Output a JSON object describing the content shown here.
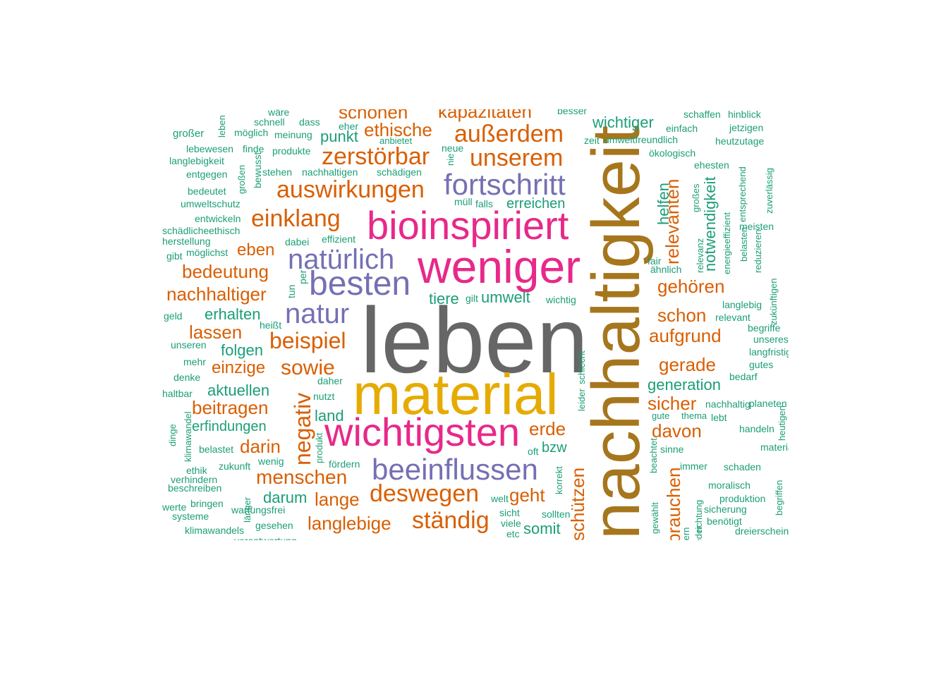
{
  "palette": {
    "gray": "#666666",
    "gold": "#e6ab02",
    "pink": "#e7298a",
    "ochre": "#a6761d",
    "purple": "#7570b3",
    "orange": "#d95f02",
    "teal": "#1b9e77"
  },
  "words": [
    "leben",
    "material",
    "nachhaltigkeit",
    "weniger",
    "bioinspiriert",
    "wichtigsten",
    "besten",
    "beeinflussen",
    "fortschritt",
    "natürlich",
    "natur",
    "zerstörbar",
    "auswirkungen",
    "unserem",
    "außerdem",
    "einklang",
    "deswegen",
    "ständig",
    "beispiel",
    "sowie",
    "negativ",
    "menschen",
    "langlebige",
    "bedeutung",
    "nachhaltiger",
    "ethische",
    "schonen",
    "kapazitäten",
    "relevanten",
    "notwendigkeit",
    "gehören",
    "aufgrund",
    "gerade",
    "sicher",
    "davon",
    "schon",
    "lassen",
    "eben",
    "beitragen",
    "erfindungen",
    "darin",
    "erde",
    "lange",
    "einzige",
    "geht",
    "schützen",
    "brauchen",
    "wichtiger",
    "generation",
    "erreichen",
    "erhalten",
    "folgen",
    "aktuellen",
    "darum",
    "punkt",
    "land",
    "umwelt",
    "tiere",
    "somit",
    "bzw",
    "helfen",
    "großer",
    "leben",
    "möglich",
    "schnell",
    "dass",
    "eher",
    "wäre",
    "meinung",
    "lebewesen",
    "finde",
    "produkte",
    "neue",
    "langlebigkeit",
    "bewusst",
    "stehen",
    "nachhaltigen",
    "schädigen",
    "entgegen",
    "großen",
    "bedeutet",
    "umweltschutz",
    "müll",
    "falls",
    "entwickeln",
    "schädliche",
    "ethisch",
    "herstellung",
    "effizient",
    "dabei",
    "gibt",
    "möglichst",
    "tun",
    "per",
    "geld",
    "heißt",
    "unseren",
    "mehr",
    "denke",
    "haltbar",
    "daher",
    "nutzt",
    "dinge",
    "klimawandel",
    "produkt",
    "belastet",
    "zukunft",
    "wenig",
    "fördern",
    "ethik",
    "verhindern",
    "beschreiben",
    "länger",
    "werte",
    "bringen",
    "wartungsfrei",
    "systeme",
    "klimawandels",
    "gesehen",
    "verantwortung",
    "anbietet",
    "nie",
    "zeit",
    "umweltfreundlich",
    "gilt",
    "wichtig",
    "oft",
    "welt",
    "sicht",
    "sollten",
    "viele",
    "etc",
    "korrekt",
    "leider",
    "schlecht",
    "besser",
    "schaffen",
    "hinblick",
    "einfach",
    "jetzigen",
    "heutzutage",
    "ökologisch",
    "ehesten",
    "entsprechend",
    "zuverlässig",
    "großes",
    "relevanz",
    "meisten",
    "energieeffizient",
    "belasten",
    "reduzieren",
    "fair",
    "ähnlich",
    "zukünftigen",
    "langlebig",
    "relevant",
    "begriffe",
    "unseres",
    "langfristig",
    "gutes",
    "bedarf",
    "nachhaltig",
    "planeten",
    "gute",
    "thema",
    "lebt",
    "handeln",
    "heutigen",
    "beachtet",
    "sinne",
    "materialsystem",
    "gewählt",
    "immer",
    "schaden",
    "richtung",
    "moralisch",
    "begriffen",
    "sicherung",
    "produktion",
    "liefern",
    "benötigt",
    "dreierscheinen",
    "weder",
    "mensch"
  ]
}
